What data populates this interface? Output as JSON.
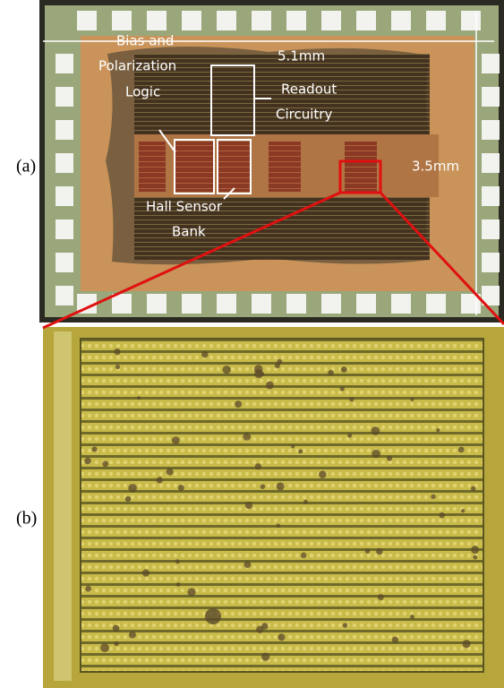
{
  "panels": [
    {
      "label": "(a)",
      "annotations": {
        "width": "5.1mm",
        "height": "3.5mm",
        "bias_logic": [
          "Bias and",
          "Polarization",
          "Logic"
        ],
        "readout": [
          "Readout",
          "Circuitry"
        ],
        "hall": [
          "Hall Sensor",
          "Bank"
        ]
      }
    },
    {
      "label": "(b)"
    }
  ]
}
